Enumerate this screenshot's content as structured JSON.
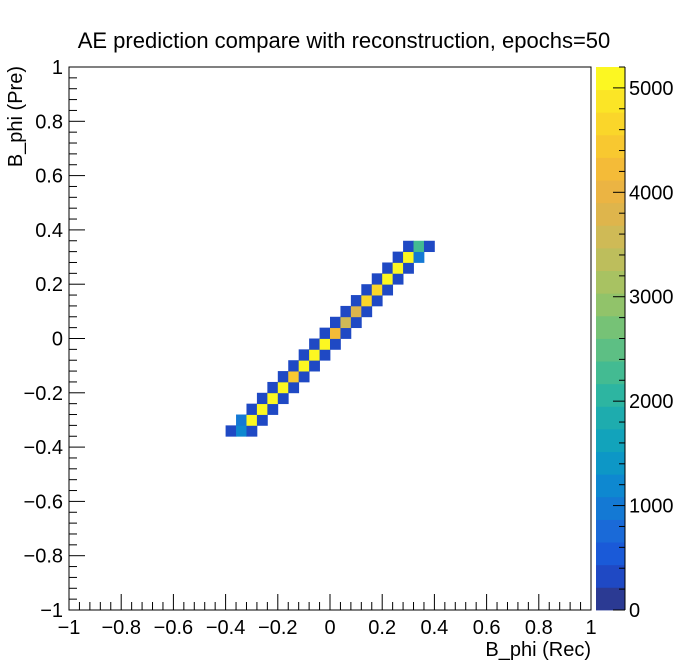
{
  "chart_data": {
    "type": "heatmap",
    "title": "AE prediction compare with reconstruction, epochs=50",
    "xlabel": "B_phi (Rec)",
    "ylabel": "B_phi (Pre)",
    "xlim": [
      -1,
      1
    ],
    "ylim": [
      -1,
      1
    ],
    "x_bins": 50,
    "y_bins": 50,
    "x_ticks": [
      "−1",
      "−0.8",
      "−0.6",
      "−0.4",
      "−0.2",
      "0",
      "0.2",
      "0.4",
      "0.6",
      "0.8",
      "1"
    ],
    "y_ticks": [
      "−1",
      "−0.8",
      "−0.6",
      "−0.4",
      "−0.2",
      "0",
      "0.2",
      "0.4",
      "0.6",
      "0.8",
      "1"
    ],
    "colorbar": {
      "min": 0,
      "max": 5200,
      "ticks": [
        "0",
        "1000",
        "2000",
        "3000",
        "4000",
        "5000"
      ],
      "colors": [
        "#2b3a93",
        "#1f49c4",
        "#1a5ad8",
        "#1a6ad8",
        "#1479d4",
        "#0e88d0",
        "#0d97c6",
        "#12a3bb",
        "#1eacae",
        "#2db5a1",
        "#43bb92",
        "#5dbf84",
        "#76c276",
        "#91c36a",
        "#a8c262",
        "#bdbe5c",
        "#cfba56",
        "#deb54c",
        "#ebb443",
        "#f4bb38",
        "#f8c830",
        "#fad62a",
        "#fbe526",
        "#fcf722"
      ]
    },
    "cells": [
      {
        "x": -0.38,
        "y": -0.34,
        "value": 400
      },
      {
        "x": -0.34,
        "y": -0.34,
        "value": 1100
      },
      {
        "x": -0.3,
        "y": -0.34,
        "value": 400
      },
      {
        "x": -0.34,
        "y": -0.3,
        "value": 1000
      },
      {
        "x": -0.3,
        "y": -0.3,
        "value": 5100
      },
      {
        "x": -0.26,
        "y": -0.3,
        "value": 400
      },
      {
        "x": -0.3,
        "y": -0.26,
        "value": 400
      },
      {
        "x": -0.26,
        "y": -0.26,
        "value": 5100
      },
      {
        "x": -0.22,
        "y": -0.26,
        "value": 400
      },
      {
        "x": -0.26,
        "y": -0.22,
        "value": 400
      },
      {
        "x": -0.22,
        "y": -0.22,
        "value": 5100
      },
      {
        "x": -0.18,
        "y": -0.22,
        "value": 400
      },
      {
        "x": -0.22,
        "y": -0.18,
        "value": 400
      },
      {
        "x": -0.18,
        "y": -0.18,
        "value": 5000
      },
      {
        "x": -0.14,
        "y": -0.18,
        "value": 400
      },
      {
        "x": -0.18,
        "y": -0.14,
        "value": 400
      },
      {
        "x": -0.14,
        "y": -0.14,
        "value": 4400
      },
      {
        "x": -0.1,
        "y": -0.14,
        "value": 400
      },
      {
        "x": -0.14,
        "y": -0.1,
        "value": 400
      },
      {
        "x": -0.1,
        "y": -0.1,
        "value": 5100
      },
      {
        "x": -0.06,
        "y": -0.1,
        "value": 400
      },
      {
        "x": -0.1,
        "y": -0.06,
        "value": 400
      },
      {
        "x": -0.06,
        "y": -0.06,
        "value": 5100
      },
      {
        "x": -0.02,
        "y": -0.06,
        "value": 400
      },
      {
        "x": -0.06,
        "y": -0.02,
        "value": 400
      },
      {
        "x": -0.02,
        "y": -0.02,
        "value": 5100
      },
      {
        "x": 0.02,
        "y": -0.02,
        "value": 400
      },
      {
        "x": -0.02,
        "y": 0.02,
        "value": 400
      },
      {
        "x": 0.02,
        "y": 0.02,
        "value": 4200
      },
      {
        "x": 0.06,
        "y": 0.02,
        "value": 400
      },
      {
        "x": 0.02,
        "y": 0.06,
        "value": 400
      },
      {
        "x": 0.06,
        "y": 0.06,
        "value": 3500
      },
      {
        "x": 0.1,
        "y": 0.06,
        "value": 400
      },
      {
        "x": 0.06,
        "y": 0.1,
        "value": 400
      },
      {
        "x": 0.1,
        "y": 0.1,
        "value": 3700
      },
      {
        "x": 0.14,
        "y": 0.1,
        "value": 400
      },
      {
        "x": 0.1,
        "y": 0.14,
        "value": 400
      },
      {
        "x": 0.14,
        "y": 0.14,
        "value": 4600
      },
      {
        "x": 0.18,
        "y": 0.14,
        "value": 400
      },
      {
        "x": 0.14,
        "y": 0.18,
        "value": 400
      },
      {
        "x": 0.18,
        "y": 0.18,
        "value": 4600
      },
      {
        "x": 0.22,
        "y": 0.18,
        "value": 400
      },
      {
        "x": 0.18,
        "y": 0.22,
        "value": 400
      },
      {
        "x": 0.22,
        "y": 0.22,
        "value": 5000
      },
      {
        "x": 0.26,
        "y": 0.22,
        "value": 400
      },
      {
        "x": 0.22,
        "y": 0.26,
        "value": 400
      },
      {
        "x": 0.26,
        "y": 0.26,
        "value": 5100
      },
      {
        "x": 0.3,
        "y": 0.26,
        "value": 400
      },
      {
        "x": 0.26,
        "y": 0.3,
        "value": 400
      },
      {
        "x": 0.3,
        "y": 0.3,
        "value": 5100
      },
      {
        "x": 0.34,
        "y": 0.3,
        "value": 1000
      },
      {
        "x": 0.3,
        "y": 0.34,
        "value": 400
      },
      {
        "x": 0.34,
        "y": 0.34,
        "value": 2200
      },
      {
        "x": 0.38,
        "y": 0.34,
        "value": 400
      }
    ]
  }
}
